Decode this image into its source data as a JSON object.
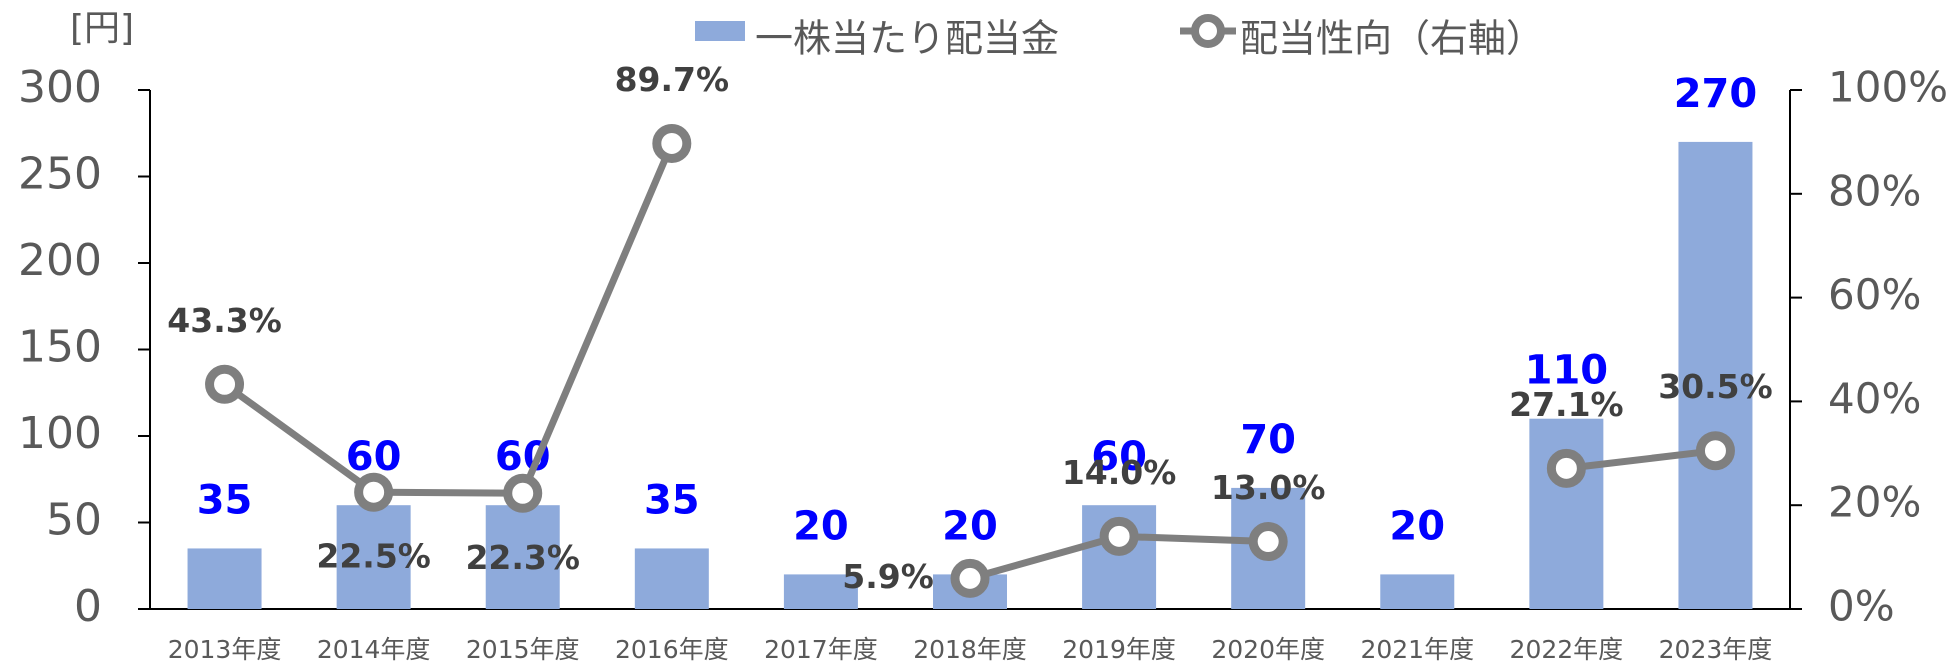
{
  "chart_data": {
    "type": "bar_line",
    "y_label": "[円]",
    "categories": [
      "2013年度",
      "2014年度",
      "2015年度",
      "2016年度",
      "2017年度",
      "2018年度",
      "2019年度",
      "2020年度",
      "2021年度",
      "2022年度",
      "2023年度"
    ],
    "series": [
      {
        "name": "一株当たり配当金",
        "type": "bar",
        "color": "#8eaadb",
        "label_color": "#0000ff",
        "values": [
          35,
          60,
          60,
          35,
          20,
          20,
          60,
          70,
          20,
          110,
          270
        ]
      },
      {
        "name": "配当性向（右軸）",
        "type": "line",
        "axis": "y2",
        "color": "#7f7f7f",
        "label_color": "#404040",
        "values": [
          43.3,
          22.5,
          22.3,
          89.7,
          null,
          5.9,
          14.0,
          13.0,
          null,
          27.1,
          30.5
        ],
        "value_labels": [
          "43.3%",
          "22.5%",
          "22.3%",
          "89.7%",
          null,
          "5.9%",
          "14.0%",
          "13.0%",
          null,
          "27.1%",
          "30.5%"
        ]
      }
    ],
    "ylim": [
      0,
      300
    ],
    "yticks": [
      0,
      50,
      100,
      150,
      200,
      250,
      300
    ],
    "y2lim": [
      0,
      100
    ],
    "y2ticks": [
      {
        "value": 0,
        "label": "0%"
      },
      {
        "value": 20,
        "label": "20%"
      },
      {
        "value": 40,
        "label": "40%"
      },
      {
        "value": 60,
        "label": "60%"
      },
      {
        "value": 80,
        "label": "80%"
      },
      {
        "value": 100,
        "label": "100%"
      }
    ]
  }
}
